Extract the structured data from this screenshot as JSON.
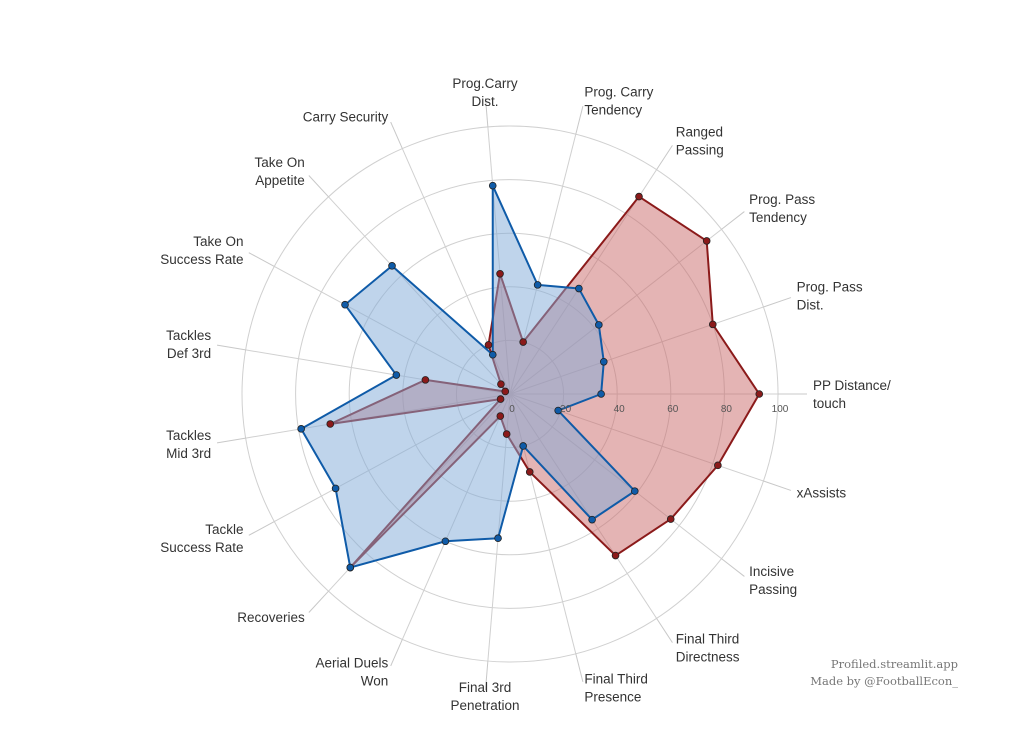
{
  "chart_data": {
    "type": "radar",
    "categories": [
      "PP Distance/\ntouch",
      "Prog. Pass\nDist.",
      "Prog. Pass\nTendency",
      "Ranged\nPassing",
      "Prog. Carry\nTendency",
      "Prog.Carry\nDist.",
      "Carry Security",
      "Take On\nAppetite",
      "Take On\nSuccess Rate",
      "Tackles\nDef 3rd",
      "Tackles\nMid 3rd",
      "Tackle\nSuccess Rate",
      "Recoveries",
      "Aerial Duels\nWon",
      "Final 3rd\nPenetration",
      "Final Third\nPresence",
      "Final Third\nDirectness",
      "Incisive\nPassing",
      "xAssists"
    ],
    "series": [
      {
        "color": "#8b1a1a",
        "fill": "#c96a6a",
        "values": [
          93,
          80,
          93,
          88,
          20,
          45,
          20,
          5,
          2,
          32,
          68,
          4,
          88,
          9,
          15,
          30,
          72,
          76,
          82
        ]
      },
      {
        "color": "#0f5ba8",
        "fill": "#7fa9d8",
        "values": [
          34,
          37,
          42,
          47,
          42,
          78,
          16,
          65,
          70,
          43,
          79,
          74,
          88,
          60,
          54,
          20,
          56,
          59,
          19
        ]
      }
    ],
    "rlim": [
      0,
      100
    ],
    "rticks": [
      0,
      20,
      40,
      60,
      80,
      100
    ],
    "rtick_labels": [
      "0",
      "20",
      "40",
      "60",
      "80",
      "100"
    ],
    "grid": true
  },
  "credits": {
    "line1": "Profiled.streamlit.app",
    "line2": "Made by @FootballEcon_"
  }
}
